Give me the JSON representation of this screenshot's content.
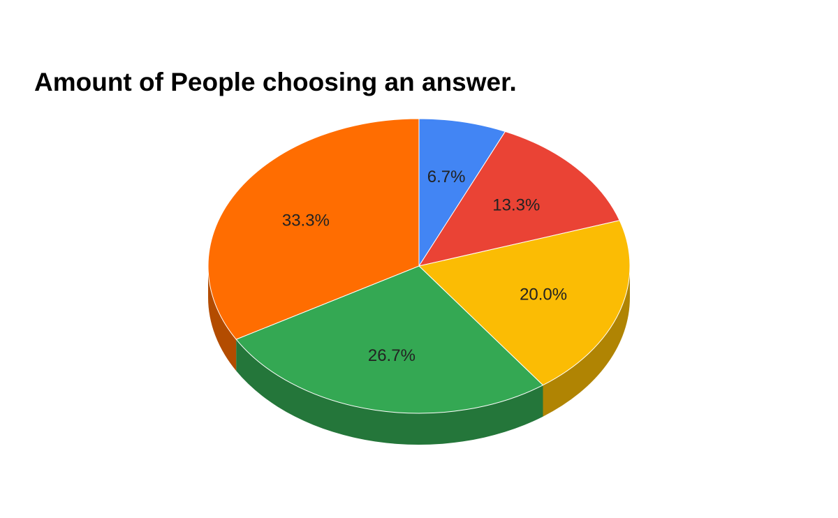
{
  "chart_data": {
    "type": "pie",
    "title": "Amount of People choosing an answer.",
    "is_3d": true,
    "start_angle_deg": 0,
    "direction": "clockwise",
    "legend": "none",
    "slices": [
      {
        "label": "6.7%",
        "value": 6.7,
        "color": "#4285f4",
        "side_color": "#2f5fad"
      },
      {
        "label": "13.3%",
        "value": 13.3,
        "color": "#ea4335",
        "side_color": "#a32f25"
      },
      {
        "label": "20.0%",
        "value": 20.0,
        "color": "#fbbc04",
        "side_color": "#b08403"
      },
      {
        "label": "26.7%",
        "value": 26.7,
        "color": "#34a853",
        "side_color": "#24763a"
      },
      {
        "label": "33.3%",
        "value": 33.3,
        "color": "#ff6d01",
        "side_color": "#b34c00"
      }
    ]
  }
}
